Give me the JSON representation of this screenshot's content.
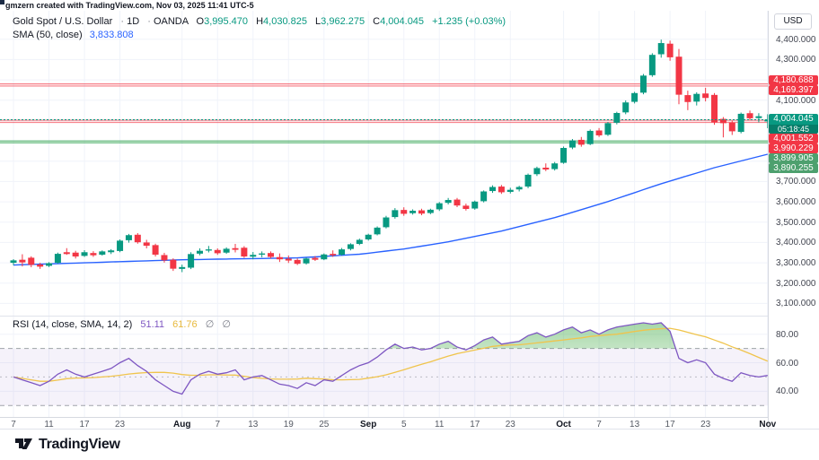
{
  "attribution": "gmzern created with TradingView.com, Nov 03, 2025 11:41 UTC-5",
  "header": {
    "symbol": "Gold Spot / U.S. Dollar",
    "sep": "·",
    "interval": "1D",
    "exchange": "OANDA",
    "o_label": "O",
    "o": "3,995.470",
    "h_label": "H",
    "h": "4,030.825",
    "l_label": "L",
    "l": "3,962.275",
    "c_label": "C",
    "c": "4,004.045",
    "change": "+1.235 (+0.03%)",
    "sma_label": "SMA (50, close)",
    "sma_value": "3,833.808"
  },
  "rsi_legend": {
    "label": "RSI (14, close, SMA, 14, 2)",
    "value": "51.11",
    "ma_value": "61.76",
    "null1": "∅",
    "null2": "∅"
  },
  "price_axis": {
    "currency_button": "USD",
    "ticks": [
      {
        "label": "4,400.000",
        "value": 4400
      },
      {
        "label": "4,300.000",
        "value": 4300
      },
      {
        "label": "4,100.000",
        "value": 4100
      },
      {
        "label": "3,700.000",
        "value": 3700
      },
      {
        "label": "3,600.000",
        "value": 3600
      },
      {
        "label": "3,500.000",
        "value": 3500
      },
      {
        "label": "3,400.000",
        "value": 3400
      },
      {
        "label": "3,300.000",
        "value": 3300
      },
      {
        "label": "3,200.000",
        "value": 3200
      },
      {
        "label": "3,100.000",
        "value": 3100
      }
    ],
    "zone_badges_top": [
      {
        "text": "4,180.688",
        "color": "#f23645",
        "value": 4180.688
      },
      {
        "text": "4,169.397",
        "color": "#f23645",
        "value": 4169.397
      }
    ],
    "current_badge": {
      "price": "4,004.045",
      "countdown": "05:18:45",
      "color": "#089981",
      "value": 4004.045
    },
    "stacked_badges": [
      {
        "text": "4,001.552",
        "color": "#f23645"
      },
      {
        "text": "3,990.229",
        "color": "#f23645"
      },
      {
        "text": "3,899.905",
        "color": "#4da06e"
      },
      {
        "text": "3,890.255",
        "color": "#4da06e"
      }
    ],
    "rsi_ticks": [
      {
        "label": "80.00",
        "value": 80
      },
      {
        "label": "60.00",
        "value": 60
      },
      {
        "label": "40.00",
        "value": 40
      }
    ]
  },
  "time_axis": {
    "ticks": [
      {
        "label": "7",
        "bar": 0,
        "major": false
      },
      {
        "label": "11",
        "bar": 4,
        "major": false
      },
      {
        "label": "17",
        "bar": 8,
        "major": false
      },
      {
        "label": "23",
        "bar": 12,
        "major": false
      },
      {
        "label": "Aug",
        "bar": 19,
        "major": true
      },
      {
        "label": "7",
        "bar": 23,
        "major": false
      },
      {
        "label": "13",
        "bar": 27,
        "major": false
      },
      {
        "label": "19",
        "bar": 31,
        "major": false
      },
      {
        "label": "25",
        "bar": 35,
        "major": false
      },
      {
        "label": "Sep",
        "bar": 40,
        "major": true
      },
      {
        "label": "5",
        "bar": 44,
        "major": false
      },
      {
        "label": "11",
        "bar": 48,
        "major": false
      },
      {
        "label": "17",
        "bar": 52,
        "major": false
      },
      {
        "label": "23",
        "bar": 56,
        "major": false
      },
      {
        "label": "Oct",
        "bar": 62,
        "major": true
      },
      {
        "label": "7",
        "bar": 66,
        "major": false
      },
      {
        "label": "13",
        "bar": 70,
        "major": false
      },
      {
        "label": "17",
        "bar": 74,
        "major": false
      },
      {
        "label": "23",
        "bar": 78,
        "major": false
      },
      {
        "label": "Nov",
        "bar": 85,
        "major": true
      }
    ]
  },
  "logo": {
    "text": "TradingView"
  },
  "colors": {
    "up": "#089981",
    "down": "#f23645",
    "sma": "#2962ff",
    "rsi": "#7e57c2",
    "rsi_ma": "#f0c44c",
    "grid": "#f0f3fa",
    "band_fill": "rgba(126,87,194,0.08)",
    "dashed_level": "#9598a1"
  },
  "chart_data": {
    "type": "candlestick",
    "title": "Gold Spot / U.S. Dollar, 1D, OANDA",
    "main_pane": {
      "ylim": [
        3040,
        4540
      ],
      "grid_levels": [
        4400,
        4300,
        4200,
        4100,
        4000,
        3900,
        3800,
        3700,
        3600,
        3500,
        3400,
        3300,
        3200,
        3100
      ],
      "current_price": 4004.045,
      "countdown": "05:18:45",
      "zones": [
        {
          "type": "resistance",
          "top": 4180.688,
          "bottom": 4169.397,
          "border": "rgba(242,54,69,0.65)",
          "fill": "rgba(242,54,69,0.13)"
        },
        {
          "type": "resistance",
          "top": 4001.552,
          "bottom": 3990.229,
          "border": "rgba(242,54,69,0.65)",
          "fill": "rgba(242,54,69,0.13)"
        },
        {
          "type": "support",
          "top": 3899.905,
          "bottom": 3890.255,
          "border": "rgba(56,166,91,0.85)",
          "fill": "rgba(76,175,80,0.2)"
        }
      ],
      "sma50": {
        "label": "SMA (50, close)",
        "last": 3833.808,
        "anchors": [
          [
            0,
            3289
          ],
          [
            19,
            3315
          ],
          [
            32,
            3324
          ],
          [
            39,
            3342
          ],
          [
            44,
            3368
          ],
          [
            49,
            3403
          ],
          [
            55,
            3456
          ],
          [
            61,
            3522
          ],
          [
            67,
            3601
          ],
          [
            73,
            3689
          ],
          [
            79,
            3768
          ],
          [
            85,
            3834
          ]
        ]
      },
      "candles": [
        [
          3300,
          3318,
          3288,
          3312
        ],
        [
          3315,
          3342,
          3282,
          3302
        ],
        [
          3325,
          3332,
          3278,
          3290
        ],
        [
          3292,
          3300,
          3270,
          3281
        ],
        [
          3285,
          3303,
          3279,
          3298
        ],
        [
          3300,
          3350,
          3295,
          3344
        ],
        [
          3352,
          3372,
          3339,
          3343
        ],
        [
          3350,
          3359,
          3321,
          3331
        ],
        [
          3334,
          3362,
          3329,
          3352
        ],
        [
          3348,
          3357,
          3329,
          3337
        ],
        [
          3340,
          3361,
          3335,
          3356
        ],
        [
          3352,
          3367,
          3343,
          3361
        ],
        [
          3358,
          3415,
          3352,
          3409
        ],
        [
          3411,
          3442,
          3399,
          3436
        ],
        [
          3438,
          3446,
          3394,
          3401
        ],
        [
          3400,
          3413,
          3371,
          3384
        ],
        [
          3387,
          3394,
          3331,
          3340
        ],
        [
          3338,
          3349,
          3301,
          3312
        ],
        [
          3315,
          3322,
          3260,
          3271
        ],
        [
          3270,
          3291,
          3254,
          3279
        ],
        [
          3276,
          3352,
          3269,
          3343
        ],
        [
          3345,
          3371,
          3337,
          3359
        ],
        [
          3360,
          3383,
          3351,
          3366
        ],
        [
          3363,
          3371,
          3339,
          3347
        ],
        [
          3350,
          3376,
          3344,
          3369
        ],
        [
          3372,
          3393,
          3351,
          3364
        ],
        [
          3374,
          3382,
          3324,
          3331
        ],
        [
          3330,
          3353,
          3317,
          3339
        ],
        [
          3340,
          3356,
          3327,
          3346
        ],
        [
          3348,
          3356,
          3321,
          3329
        ],
        [
          3328,
          3346,
          3304,
          3317
        ],
        [
          3320,
          3336,
          3299,
          3311
        ],
        [
          3314,
          3321,
          3289,
          3295
        ],
        [
          3297,
          3326,
          3291,
          3321
        ],
        [
          3324,
          3333,
          3309,
          3315
        ],
        [
          3317,
          3346,
          3313,
          3341
        ],
        [
          3344,
          3361,
          3329,
          3337
        ],
        [
          3340,
          3373,
          3335,
          3366
        ],
        [
          3368,
          3396,
          3361,
          3391
        ],
        [
          3393,
          3419,
          3387,
          3413
        ],
        [
          3415,
          3443,
          3409,
          3438
        ],
        [
          3440,
          3479,
          3435,
          3473
        ],
        [
          3475,
          3531,
          3469,
          3523
        ],
        [
          3525,
          3569,
          3517,
          3559
        ],
        [
          3560,
          3573,
          3531,
          3541
        ],
        [
          3544,
          3563,
          3537,
          3556
        ],
        [
          3558,
          3566,
          3534,
          3542
        ],
        [
          3545,
          3566,
          3539,
          3561
        ],
        [
          3563,
          3599,
          3555,
          3593
        ],
        [
          3595,
          3619,
          3587,
          3609
        ],
        [
          3611,
          3619,
          3574,
          3582
        ],
        [
          3581,
          3591,
          3557,
          3565
        ],
        [
          3567,
          3606,
          3561,
          3601
        ],
        [
          3603,
          3656,
          3597,
          3651
        ],
        [
          3653,
          3681,
          3644,
          3673
        ],
        [
          3675,
          3683,
          3639,
          3647
        ],
        [
          3649,
          3669,
          3641,
          3659
        ],
        [
          3661,
          3679,
          3651,
          3673
        ],
        [
          3675,
          3739,
          3667,
          3733
        ],
        [
          3736,
          3773,
          3727,
          3766
        ],
        [
          3768,
          3789,
          3751,
          3759
        ],
        [
          3761,
          3796,
          3754,
          3789
        ],
        [
          3792,
          3872,
          3787,
          3865
        ],
        [
          3867,
          3909,
          3859,
          3902
        ],
        [
          3905,
          3919,
          3871,
          3881
        ],
        [
          3884,
          3956,
          3879,
          3949
        ],
        [
          3951,
          3963,
          3919,
          3927
        ],
        [
          3930,
          3993,
          3924,
          3987
        ],
        [
          3989,
          4043,
          3981,
          4037
        ],
        [
          4040,
          4099,
          4031,
          4089
        ],
        [
          4092,
          4141,
          4084,
          4135
        ],
        [
          4137,
          4229,
          4129,
          4221
        ],
        [
          4223,
          4331,
          4215,
          4323
        ],
        [
          4326,
          4398,
          4309,
          4381
        ],
        [
          4378,
          4393,
          4294,
          4311
        ],
        [
          4314,
          4352,
          4080,
          4127
        ],
        [
          4125,
          4147,
          4051,
          4091
        ],
        [
          4093,
          4139,
          4074,
          4131
        ],
        [
          4133,
          4161,
          4094,
          4111
        ],
        [
          4126,
          4135,
          3979,
          3991
        ],
        [
          4008,
          4017,
          3917,
          3987
        ],
        [
          3990,
          3999,
          3929,
          3947
        ],
        [
          3944,
          4039,
          3937,
          4033
        ],
        [
          4036,
          4049,
          4003,
          4011
        ],
        [
          4012,
          4036,
          3991,
          4021
        ],
        [
          3995.47,
          4030.825,
          3962.275,
          4004.045
        ]
      ]
    },
    "rsi_pane": {
      "ylim": [
        22,
        93
      ],
      "label": "RSI (14, close, SMA, 14, 2)",
      "last": 51.11,
      "ma_last": 61.76,
      "ma_window": 14,
      "levels": {
        "overbought": 70,
        "middle": 50,
        "oversold": 30
      },
      "grid_levels": [
        80,
        60,
        40
      ],
      "values": [
        50,
        48,
        46,
        44,
        47,
        52,
        55,
        52,
        50,
        52,
        54,
        56,
        60,
        63,
        58,
        54,
        48,
        44,
        40,
        38,
        48,
        52,
        54,
        52,
        53,
        55,
        48,
        50,
        51,
        48,
        45,
        44,
        42,
        46,
        44,
        48,
        47,
        51,
        55,
        58,
        60,
        64,
        69,
        73,
        70,
        71,
        69,
        70,
        73,
        75,
        71,
        69,
        72,
        76,
        78,
        73,
        74,
        75,
        79,
        81,
        78,
        80,
        83,
        85,
        81,
        83,
        80,
        83,
        85,
        86,
        87,
        88,
        87,
        88,
        82,
        63,
        60,
        62,
        60,
        52,
        49,
        47,
        53,
        51,
        50,
        51.11
      ]
    }
  }
}
